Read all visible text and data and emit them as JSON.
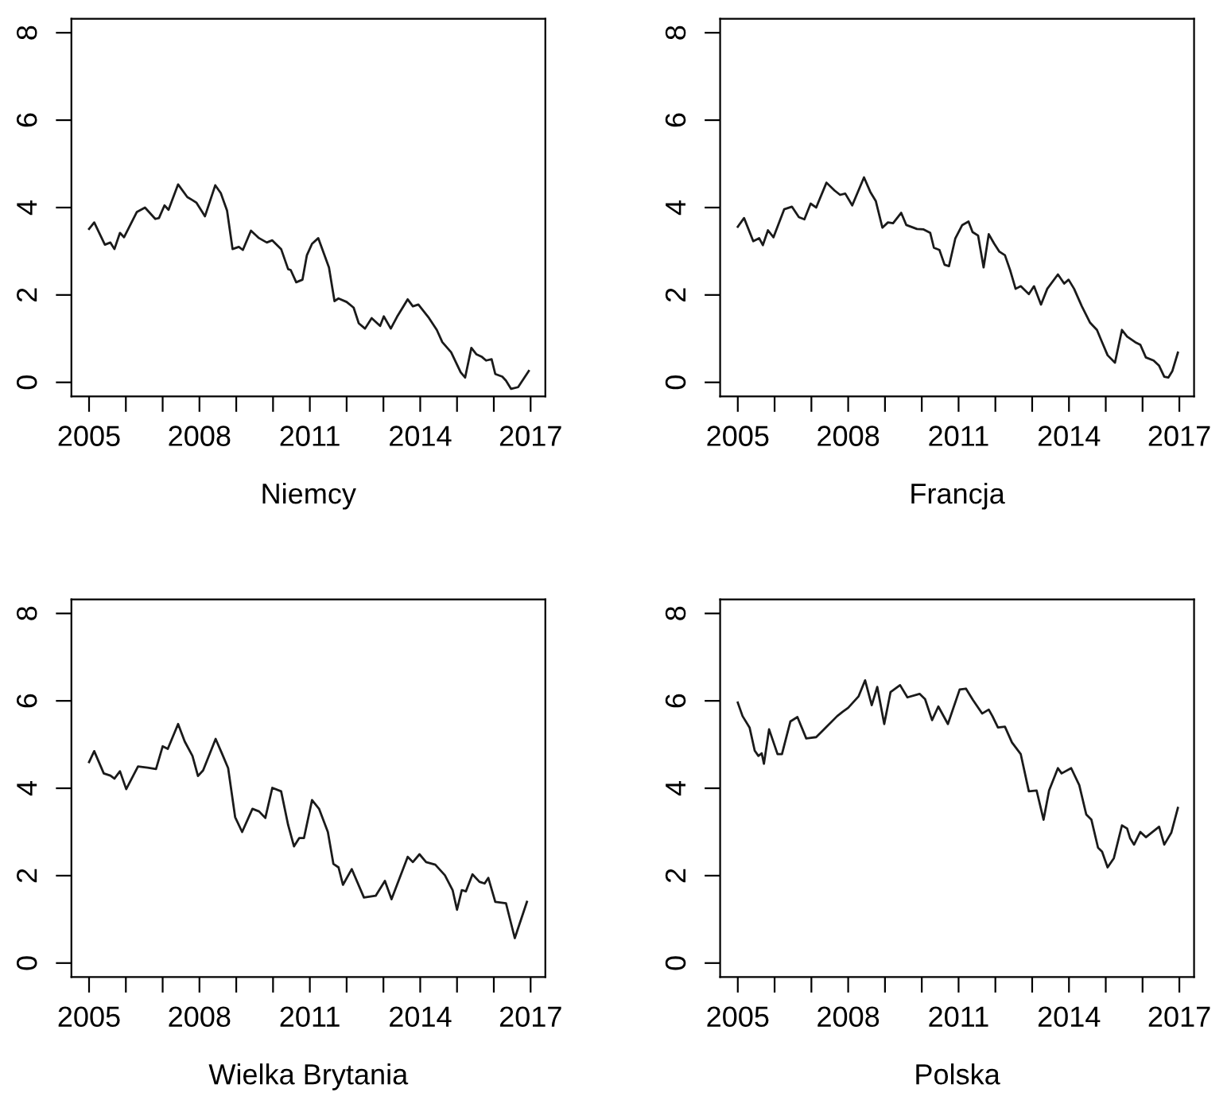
{
  "chart_data": [
    {
      "type": "line",
      "xlabel": "Niemcy",
      "color": "#1a1a1a",
      "grid": false,
      "xlim": [
        2004.52,
        2017.4
      ],
      "ylim": [
        -0.32,
        8.32
      ],
      "xticks": [
        2005,
        {
          "value": 2006,
          "label": null
        },
        {
          "value": 2007,
          "label": null
        },
        2008,
        {
          "value": 2009,
          "label": null
        },
        {
          "value": 2010,
          "label": null
        },
        2011,
        {
          "value": 2012,
          "label": null
        },
        {
          "value": 2013,
          "label": null
        },
        2014,
        {
          "value": 2015,
          "label": null
        },
        {
          "value": 2016,
          "label": null
        },
        2017
      ],
      "yticks": [
        0,
        2,
        4,
        6,
        8
      ],
      "x": [
        2005.0,
        2005.14,
        2005.43,
        2005.58,
        2005.69,
        2005.84,
        2005.95,
        2006.3,
        2006.52,
        2006.8,
        2006.9,
        2007.05,
        2007.16,
        2007.42,
        2007.67,
        2007.81,
        2007.92,
        2008.15,
        2008.43,
        2008.58,
        2008.75,
        2008.9,
        2009.07,
        2009.18,
        2009.4,
        2009.62,
        2009.83,
        2009.98,
        2010.22,
        2010.41,
        2010.48,
        2010.63,
        2010.8,
        2010.92,
        2011.06,
        2011.23,
        2011.52,
        2011.67,
        2011.78,
        2012.0,
        2012.19,
        2012.33,
        2012.5,
        2012.68,
        2012.91,
        2013.01,
        2013.2,
        2013.37,
        2013.66,
        2013.8,
        2013.95,
        2014.24,
        2014.45,
        2014.6,
        2014.84,
        2015.1,
        2015.22,
        2015.39,
        2015.53,
        2015.68,
        2015.79,
        2015.94,
        2016.04,
        2016.23,
        2016.33,
        2016.47,
        2016.66,
        2016.95
      ],
      "values": [
        3.51,
        3.66,
        3.15,
        3.2,
        3.05,
        3.42,
        3.32,
        3.9,
        4.0,
        3.74,
        3.76,
        4.05,
        3.95,
        4.53,
        4.24,
        4.17,
        4.11,
        3.8,
        4.51,
        4.33,
        3.93,
        3.05,
        3.1,
        3.03,
        3.47,
        3.3,
        3.2,
        3.25,
        3.05,
        2.59,
        2.57,
        2.29,
        2.35,
        2.91,
        3.17,
        3.3,
        2.63,
        1.86,
        1.92,
        1.84,
        1.71,
        1.35,
        1.23,
        1.47,
        1.29,
        1.51,
        1.23,
        1.5,
        1.9,
        1.74,
        1.78,
        1.47,
        1.2,
        0.92,
        0.69,
        0.23,
        0.11,
        0.79,
        0.64,
        0.58,
        0.5,
        0.53,
        0.19,
        0.13,
        0.04,
        -0.15,
        -0.11,
        0.26
      ]
    },
    {
      "type": "line",
      "xlabel": "Francja",
      "color": "#1a1a1a",
      "grid": false,
      "xlim": [
        2004.52,
        2017.4
      ],
      "ylim": [
        -0.32,
        8.32
      ],
      "xticks": [
        2005,
        {
          "value": 2006,
          "label": null
        },
        {
          "value": 2007,
          "label": null
        },
        2008,
        {
          "value": 2009,
          "label": null
        },
        {
          "value": 2010,
          "label": null
        },
        2011,
        {
          "value": 2012,
          "label": null
        },
        {
          "value": 2013,
          "label": null
        },
        2014,
        {
          "value": 2015,
          "label": null
        },
        {
          "value": 2016,
          "label": null
        },
        2017
      ],
      "yticks": [
        0,
        2,
        4,
        6,
        8
      ],
      "x": [
        2005.0,
        2005.17,
        2005.42,
        2005.58,
        2005.68,
        2005.82,
        2005.97,
        2006.26,
        2006.47,
        2006.66,
        2006.81,
        2006.98,
        2007.13,
        2007.41,
        2007.63,
        2007.78,
        2007.92,
        2008.11,
        2008.43,
        2008.6,
        2008.75,
        2008.93,
        2009.08,
        2009.22,
        2009.44,
        2009.58,
        2009.87,
        2010.05,
        2010.23,
        2010.33,
        2010.48,
        2010.62,
        2010.74,
        2010.91,
        2011.1,
        2011.27,
        2011.38,
        2011.53,
        2011.68,
        2011.82,
        2011.97,
        2012.11,
        2012.26,
        2012.4,
        2012.55,
        2012.69,
        2012.91,
        2013.05,
        2013.24,
        2013.41,
        2013.7,
        2013.87,
        2013.99,
        2014.14,
        2014.35,
        2014.57,
        2014.76,
        2014.9,
        2015.05,
        2015.25,
        2015.44,
        2015.58,
        2015.8,
        2015.94,
        2016.09,
        2016.3,
        2016.45,
        2016.59,
        2016.7,
        2016.81,
        2016.96
      ],
      "values": [
        3.56,
        3.76,
        3.23,
        3.3,
        3.14,
        3.48,
        3.32,
        3.96,
        4.02,
        3.78,
        3.73,
        4.09,
        4.0,
        4.57,
        4.39,
        4.29,
        4.32,
        4.05,
        4.69,
        4.36,
        4.15,
        3.54,
        3.66,
        3.64,
        3.88,
        3.6,
        3.51,
        3.5,
        3.42,
        3.08,
        3.03,
        2.69,
        2.66,
        3.29,
        3.6,
        3.68,
        3.44,
        3.36,
        2.63,
        3.39,
        3.17,
        2.99,
        2.91,
        2.57,
        2.14,
        2.2,
        2.02,
        2.2,
        1.78,
        2.14,
        2.47,
        2.26,
        2.35,
        2.14,
        1.74,
        1.37,
        1.2,
        0.92,
        0.62,
        0.45,
        1.2,
        1.05,
        0.92,
        0.86,
        0.57,
        0.5,
        0.38,
        0.13,
        0.11,
        0.26,
        0.68
      ]
    },
    {
      "type": "line",
      "xlabel": "Wielka Brytania",
      "color": "#1a1a1a",
      "grid": false,
      "xlim": [
        2004.52,
        2017.4
      ],
      "ylim": [
        -0.32,
        8.32
      ],
      "xticks": [
        2005,
        {
          "value": 2006,
          "label": null
        },
        {
          "value": 2007,
          "label": null
        },
        2008,
        {
          "value": 2009,
          "label": null
        },
        {
          "value": 2010,
          "label": null
        },
        2011,
        {
          "value": 2012,
          "label": null
        },
        {
          "value": 2013,
          "label": null
        },
        2014,
        {
          "value": 2015,
          "label": null
        },
        {
          "value": 2016,
          "label": null
        },
        2017
      ],
      "yticks": [
        0,
        2,
        4,
        6,
        8
      ],
      "x": [
        2005.0,
        2005.14,
        2005.4,
        2005.58,
        2005.69,
        2005.84,
        2006.01,
        2006.33,
        2006.59,
        2006.82,
        2007.0,
        2007.14,
        2007.42,
        2007.6,
        2007.81,
        2007.96,
        2008.1,
        2008.44,
        2008.61,
        2008.78,
        2008.97,
        2009.16,
        2009.44,
        2009.62,
        2009.79,
        2009.98,
        2010.22,
        2010.41,
        2010.57,
        2010.71,
        2010.84,
        2011.06,
        2011.25,
        2011.49,
        2011.64,
        2011.78,
        2011.9,
        2012.14,
        2012.47,
        2012.79,
        2013.04,
        2013.22,
        2013.66,
        2013.8,
        2013.98,
        2014.16,
        2014.41,
        2014.67,
        2014.88,
        2015.0,
        2015.13,
        2015.24,
        2015.42,
        2015.61,
        2015.75,
        2015.85,
        2016.04,
        2016.33,
        2016.57,
        2016.9
      ],
      "values": [
        4.6,
        4.85,
        4.34,
        4.29,
        4.22,
        4.39,
        3.98,
        4.5,
        4.47,
        4.44,
        4.96,
        4.9,
        5.47,
        5.07,
        4.74,
        4.28,
        4.41,
        5.13,
        4.8,
        4.46,
        3.34,
        3.0,
        3.53,
        3.47,
        3.32,
        4.01,
        3.93,
        3.16,
        2.67,
        2.86,
        2.86,
        3.73,
        3.53,
        3.0,
        2.27,
        2.19,
        1.79,
        2.15,
        1.5,
        1.54,
        1.88,
        1.46,
        2.43,
        2.31,
        2.49,
        2.31,
        2.25,
        2.01,
        1.67,
        1.22,
        1.67,
        1.64,
        2.03,
        1.86,
        1.82,
        1.95,
        1.4,
        1.37,
        0.57,
        1.4
      ]
    },
    {
      "type": "line",
      "xlabel": "Polska",
      "color": "#1a1a1a",
      "grid": false,
      "xlim": [
        2004.52,
        2017.4
      ],
      "ylim": [
        -0.32,
        8.32
      ],
      "xticks": [
        2005,
        {
          "value": 2006,
          "label": null
        },
        {
          "value": 2007,
          "label": null
        },
        2008,
        {
          "value": 2009,
          "label": null
        },
        {
          "value": 2010,
          "label": null
        },
        2011,
        {
          "value": 2012,
          "label": null
        },
        {
          "value": 2013,
          "label": null
        },
        2014,
        {
          "value": 2015,
          "label": null
        },
        {
          "value": 2016,
          "label": null
        },
        2017
      ],
      "yticks": [
        0,
        2,
        4,
        6,
        8
      ],
      "x": [
        2005.0,
        2005.13,
        2005.32,
        2005.46,
        2005.56,
        2005.65,
        2005.71,
        2005.85,
        2006.08,
        2006.2,
        2006.43,
        2006.62,
        2006.86,
        2007.13,
        2007.39,
        2007.7,
        2007.85,
        2008.0,
        2008.28,
        2008.46,
        2008.64,
        2008.79,
        2008.98,
        2009.15,
        2009.41,
        2009.61,
        2009.94,
        2010.09,
        2010.28,
        2010.45,
        2010.71,
        2011.03,
        2011.2,
        2011.39,
        2011.64,
        2011.82,
        2011.92,
        2012.07,
        2012.26,
        2012.45,
        2012.69,
        2012.91,
        2013.12,
        2013.31,
        2013.46,
        2013.7,
        2013.8,
        2014.06,
        2014.28,
        2014.47,
        2014.61,
        2014.79,
        2014.9,
        2015.05,
        2015.22,
        2015.44,
        2015.58,
        2015.66,
        2015.77,
        2015.94,
        2016.09,
        2016.45,
        2016.59,
        2016.78,
        2016.96
      ],
      "values": [
        5.96,
        5.65,
        5.39,
        4.86,
        4.74,
        4.8,
        4.56,
        5.35,
        4.78,
        4.78,
        5.53,
        5.63,
        5.14,
        5.17,
        5.39,
        5.65,
        5.75,
        5.84,
        6.1,
        6.47,
        5.9,
        6.32,
        5.47,
        6.2,
        6.36,
        6.08,
        6.16,
        6.04,
        5.56,
        5.87,
        5.47,
        6.26,
        6.28,
        6.02,
        5.71,
        5.8,
        5.65,
        5.39,
        5.41,
        5.05,
        4.78,
        3.93,
        3.95,
        3.28,
        3.95,
        4.46,
        4.34,
        4.46,
        4.07,
        3.4,
        3.28,
        2.64,
        2.55,
        2.19,
        2.4,
        3.15,
        3.08,
        2.86,
        2.71,
        3.0,
        2.88,
        3.12,
        2.71,
        2.98,
        3.55
      ]
    }
  ]
}
